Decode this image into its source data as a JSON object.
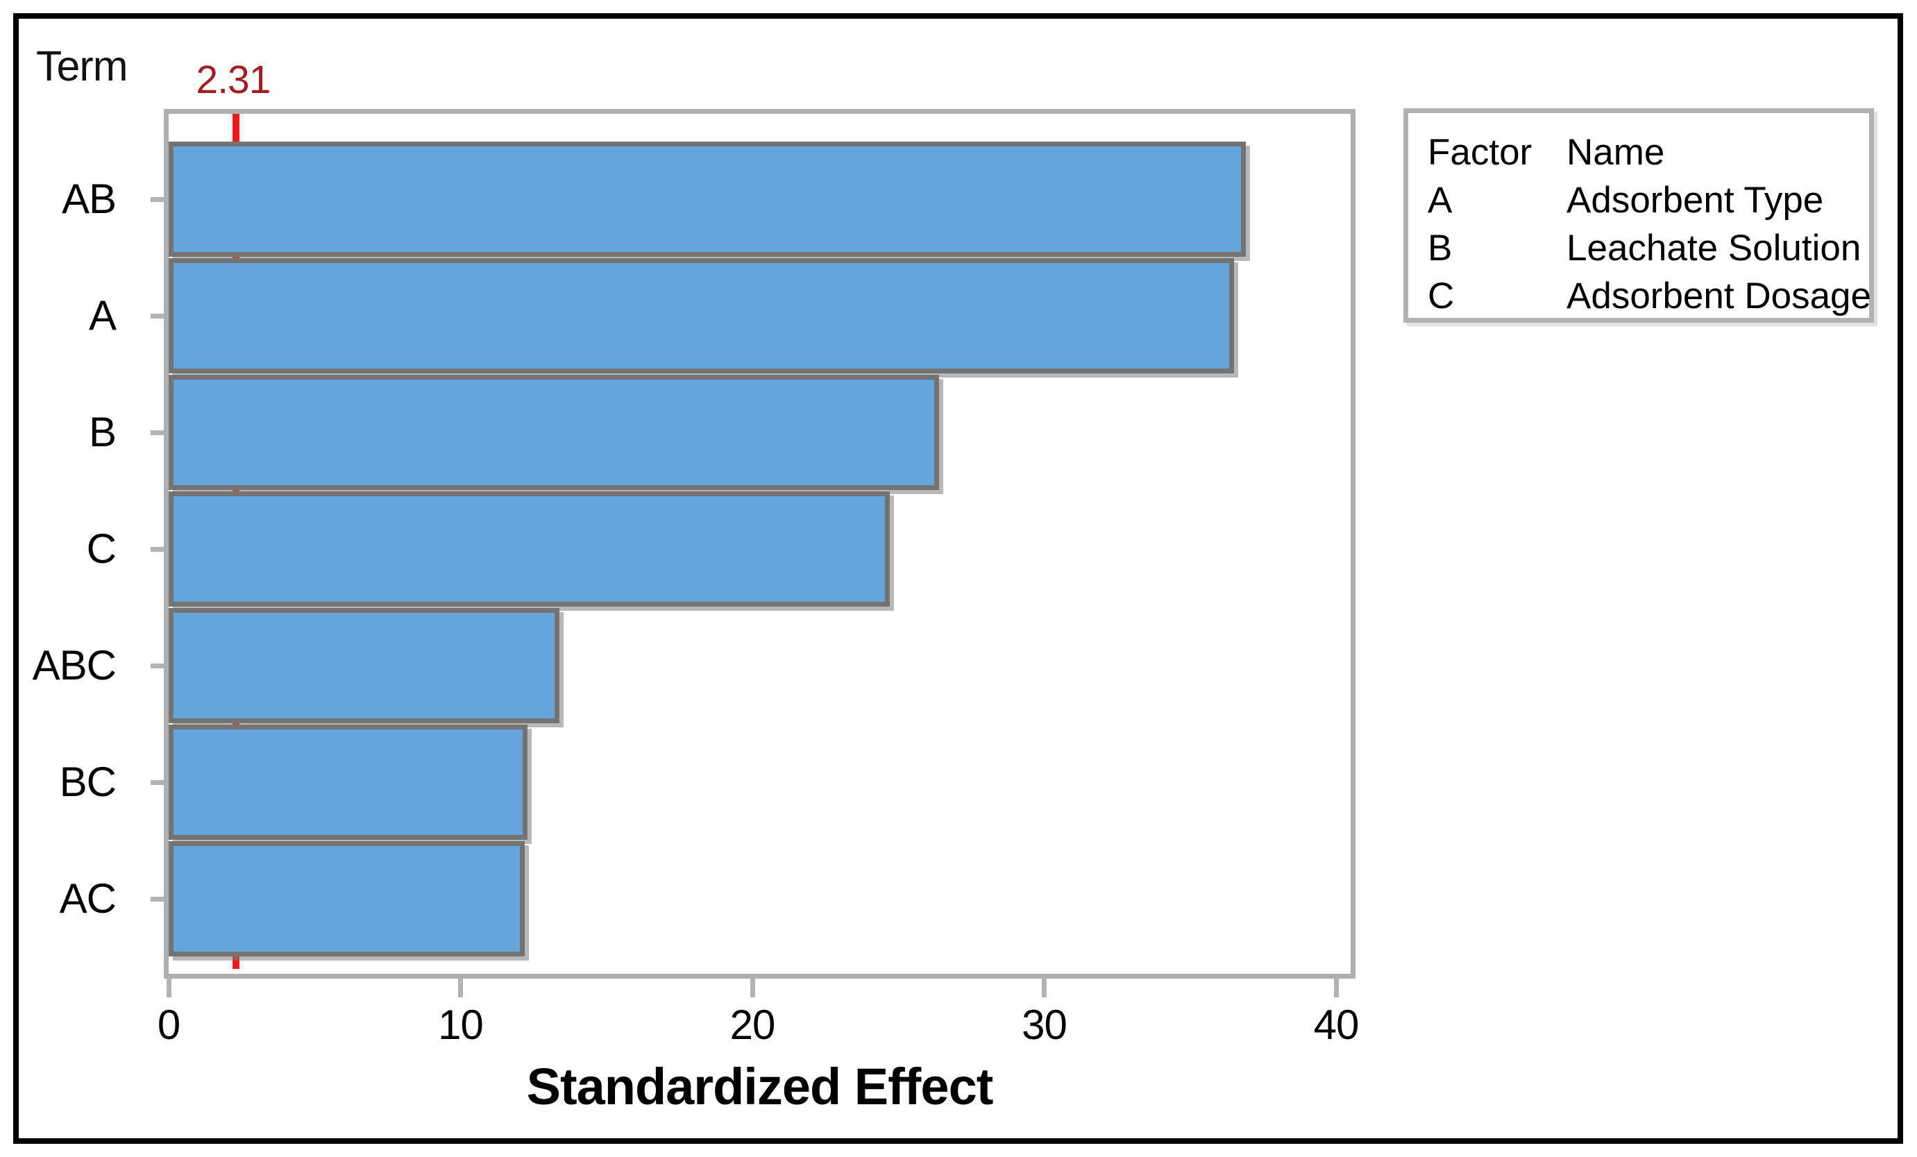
{
  "chart_data": {
    "type": "bar",
    "orientation": "horizontal",
    "categories": [
      "AB",
      "A",
      "B",
      "C",
      "ABC",
      "BC",
      "AC"
    ],
    "values": [
      36.9,
      36.5,
      26.4,
      24.7,
      13.4,
      12.3,
      12.2
    ],
    "xlabel": "Standardized Effect",
    "ylabel": "Term",
    "xlim": [
      0,
      40.5
    ],
    "x_ticks": [
      0,
      10,
      20,
      30,
      40
    ],
    "reference_line_value": 2.31,
    "reference_line_label": "2.31",
    "grid": false,
    "legend_position": "right",
    "colors": {
      "bar_fill": "#64a6db",
      "bar_border": "#737373",
      "axis_gray": "#b3b3b3",
      "ref_line": "#eb1b1b",
      "ref_label": "#a21e22"
    }
  },
  "legend": {
    "headers": [
      "Factor",
      "Name"
    ],
    "rows": [
      {
        "factor": "A",
        "name": "Adsorbent Type"
      },
      {
        "factor": "B",
        "name": "Leachate Solution"
      },
      {
        "factor": "C",
        "name": "Adsorbent Dosage"
      }
    ]
  }
}
